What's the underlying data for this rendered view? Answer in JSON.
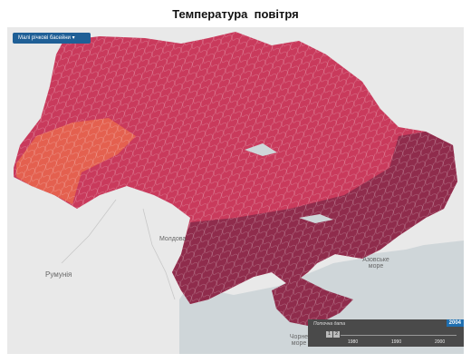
{
  "header": {
    "title": "Температура  повітря"
  },
  "dropdown": {
    "label": "Малі річкові басейни"
  },
  "map_labels": {
    "moldova": "Молдова",
    "romania": "Румунія",
    "azov_sea": "Азовське море",
    "black_sea": "Чорне море"
  },
  "timeline": {
    "caption": "Поточна дата",
    "buttons": [
      "1",
      "2"
    ],
    "ticks": [
      "1980",
      "1990",
      "2000"
    ],
    "current": "2004"
  }
}
